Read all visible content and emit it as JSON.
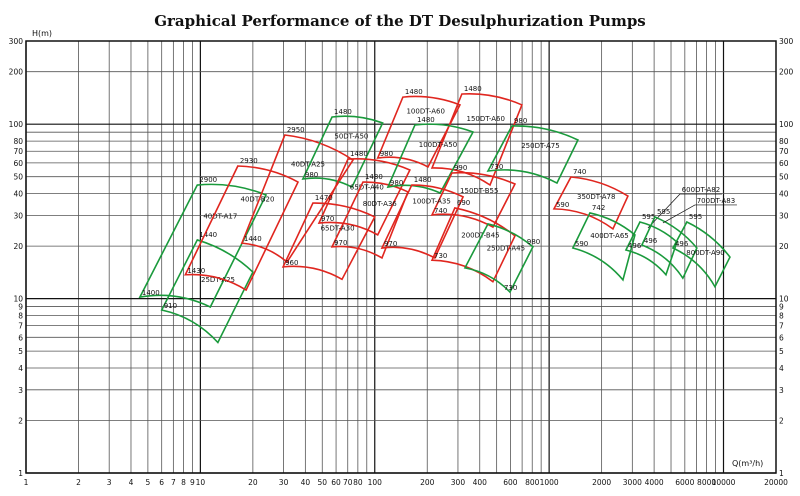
{
  "chart_data": {
    "type": "line",
    "title": "Graphical Performance of the DT Desulphurization Pumps",
    "xlabel": "Q(m³/h)",
    "ylabel": "H(m)",
    "xscale": "log",
    "yscale": "log",
    "xlim": [
      1,
      20000
    ],
    "ylim": [
      1,
      300
    ],
    "grid": true,
    "x_ticks": [
      "1",
      "2",
      "3",
      "4",
      "5",
      "6",
      "7",
      "8",
      "9",
      "10",
      "20",
      "30",
      "40",
      "50",
      "60",
      "70",
      "80",
      "100",
      "200",
      "300",
      "400",
      "600",
      "800",
      "1000",
      "2000",
      "3000",
      "4000",
      "6000",
      "8000",
      "10000",
      "20000"
    ],
    "y_ticks": [
      "1",
      "2",
      "3",
      "4",
      "5",
      "6",
      "7",
      "8",
      "9",
      "10",
      "20",
      "30",
      "40",
      "50",
      "60",
      "70",
      "80",
      "100",
      "200",
      "300"
    ],
    "colors": {
      "red": "#e0261f",
      "green": "#1a9a3c"
    },
    "regions": [
      {
        "name": "40DT-A17",
        "color": "green",
        "corners": [
          [
            9.6,
            44.8
          ],
          [
            23.8,
            39.3
          ],
          [
            11.4,
            8.95
          ],
          [
            4.5,
            10.2
          ]
        ],
        "labels": [
          {
            "text": "2900",
            "at": "tl"
          },
          {
            "text": "1400",
            "at": "bl"
          }
        ]
      },
      {
        "name": "25DT-A25",
        "color": "green",
        "corners": [
          [
            9.6,
            21.7
          ],
          [
            20.0,
            14.2
          ],
          [
            12.6,
            5.6
          ],
          [
            6.0,
            8.6
          ]
        ],
        "labels": [
          {
            "text": "1440",
            "at": "tl"
          },
          {
            "text": "910",
            "at": "bl"
          }
        ]
      },
      {
        "name": "40DT-B20",
        "color": "red",
        "corners": [
          [
            16.4,
            57.6
          ],
          [
            36.3,
            46.6
          ],
          [
            18.3,
            11.2
          ],
          [
            8.2,
            13.7
          ]
        ],
        "labels": [
          {
            "text": "2930",
            "at": "tl"
          },
          {
            "text": "1430",
            "at": "bl"
          }
        ]
      },
      {
        "name": "40DT-A25",
        "color": "red",
        "corners": [
          [
            30.5,
            86.7
          ],
          [
            75,
            62.3
          ],
          [
            31.4,
            16.2
          ],
          [
            17.3,
            20.8
          ]
        ],
        "labels": [
          {
            "text": "2950",
            "at": "tl"
          },
          {
            "text": "1440",
            "at": "bl"
          }
        ]
      },
      {
        "name": "50DT-A50",
        "color": "green",
        "corners": [
          [
            56.9,
            110
          ],
          [
            111,
            101.6
          ],
          [
            74,
            43.6
          ],
          [
            38.7,
            48.5
          ]
        ],
        "labels": [
          {
            "text": "1480",
            "at": "tl"
          },
          {
            "text": "980",
            "at": "bl"
          }
        ]
      },
      {
        "name": "65DT-A40",
        "color": "red",
        "corners": [
          [
            70.2,
            63.1
          ],
          [
            159,
            54.6
          ],
          [
            104,
            23.2
          ],
          [
            47.9,
            27.1
          ]
        ],
        "labels": [
          {
            "text": "1480",
            "at": "tl"
          },
          {
            "text": "970",
            "at": "bl"
          }
        ]
      },
      {
        "name": "80DT-A36",
        "color": "red",
        "corners": [
          [
            85.6,
            46.6
          ],
          [
            155,
            40.9
          ],
          [
            110,
            17.1
          ],
          [
            56.9,
            19.8
          ]
        ],
        "labels": [
          {
            "text": "1480",
            "at": "tl"
          },
          {
            "text": "970",
            "at": "bl"
          }
        ]
      },
      {
        "name": "65DT-A30",
        "color": "red",
        "corners": [
          [
            44.2,
            35.3
          ],
          [
            100,
            29.4
          ],
          [
            64.9,
            12.9
          ],
          [
            29.8,
            15.2
          ]
        ],
        "labels": [
          {
            "text": "1470",
            "at": "tl"
          },
          {
            "text": "960",
            "at": "bl"
          }
        ]
      },
      {
        "name": "100DT-A60",
        "color": "red",
        "corners": [
          [
            145,
            143
          ],
          [
            308,
            129
          ],
          [
            202,
            56.9
          ],
          [
            104,
            64
          ]
        ],
        "labels": [
          {
            "text": "1480",
            "at": "tl"
          },
          {
            "text": "980",
            "at": "bl"
          }
        ]
      },
      {
        "name": "150DT-A60",
        "color": "red",
        "corners": [
          [
            316,
            149
          ],
          [
            698,
            129
          ],
          [
            458,
            44.8
          ],
          [
            213,
            56.1
          ]
        ],
        "labels": [
          {
            "text": "1480",
            "at": "tl"
          }
        ]
      },
      {
        "name": "100DT-A50",
        "color": "green",
        "corners": [
          [
            170,
            99
          ],
          [
            366,
            90.2
          ],
          [
            237,
            40.3
          ],
          [
            119,
            43.6
          ]
        ],
        "labels": [
          {
            "text": "1480",
            "at": "tl"
          },
          {
            "text": "980",
            "at": "bl"
          }
        ]
      },
      {
        "name": "250DT-A75",
        "color": "green",
        "corners": [
          [
            612,
            97.7
          ],
          [
            1463,
            81.2
          ],
          [
            1109,
            46
          ],
          [
            446,
            53.9
          ]
        ],
        "labels": [
          {
            "text": "980",
            "at": "tl"
          },
          {
            "text": "730",
            "at": "bl"
          }
        ]
      },
      {
        "name": "150DT-B55",
        "color": "red",
        "corners": [
          [
            277,
            52.5
          ],
          [
            637,
            45.4
          ],
          [
            476,
            25.7
          ],
          [
            213,
            30.2
          ]
        ],
        "labels": [
          {
            "text": "990",
            "at": "tl"
          },
          {
            "text": "740",
            "at": "bl"
          }
        ]
      },
      {
        "name": "100DT-A35",
        "color": "red",
        "corners": [
          [
            163,
            44.8
          ],
          [
            321,
            38.3
          ],
          [
            221,
            17.1
          ],
          [
            110,
            19.5
          ]
        ],
        "labels": [
          {
            "text": "1480",
            "at": "tl"
          },
          {
            "text": "970",
            "at": "bl"
          }
        ]
      },
      {
        "name": "200DT-B45",
        "color": "red",
        "corners": [
          [
            288,
            33.1
          ],
          [
            637,
            22.9
          ],
          [
            476,
            12.5
          ],
          [
            213,
            16.6
          ]
        ],
        "labels": [
          {
            "text": "690",
            "at": "tl"
          },
          {
            "text": "730",
            "at": "bl"
          }
        ]
      },
      {
        "name": "250DT-A45",
        "color": "green",
        "corners": [
          [
            446,
            26.8
          ],
          [
            807,
            19.8
          ],
          [
            596,
            10.9
          ],
          [
            329,
            15.0
          ]
        ],
        "labels": [
          {
            "text": "980",
            "at": "tr"
          },
          {
            "text": "730",
            "at": "br"
          }
        ]
      },
      {
        "name": "350DT-A78",
        "color": "red",
        "corners": [
          [
            1334,
            49.8
          ],
          [
            2831,
            38.7
          ],
          [
            2322,
            25.1
          ],
          [
            1066,
            32.7
          ]
        ],
        "labels": [
          {
            "text": "740",
            "at": "tl"
          },
          {
            "text": "590",
            "at": "bl"
          }
        ]
      },
      {
        "name": "400DT-A65",
        "color": "green",
        "corners": [
          [
            1714,
            31
          ],
          [
            3105,
            23.2
          ],
          [
            2650,
            12.8
          ],
          [
            1368,
            19.5
          ]
        ],
        "labels": [
          {
            "text": "742",
            "at": "tl"
          },
          {
            "text": "590",
            "at": "bl"
          }
        ]
      },
      {
        "name": "600DT-A82",
        "color": "green",
        "callout": true,
        "corners": [
          [
            3318,
            27.5
          ],
          [
            5405,
            21.1
          ],
          [
            4677,
            13.7
          ],
          [
            2757,
            19.0
          ]
        ],
        "labels": [
          {
            "text": "595",
            "at": "tl"
          },
          {
            "text": "496",
            "at": "bl"
          }
        ]
      },
      {
        "name": "700DT-A83",
        "color": "green",
        "callout": true,
        "corners": [
          [
            4044,
            29.4
          ],
          [
            7035,
            19.5
          ],
          [
            5848,
            13.1
          ],
          [
            3404,
            20.3
          ]
        ],
        "labels": [
          {
            "text": "595",
            "at": "tl"
          },
          {
            "text": "496",
            "at": "bl"
          }
        ]
      },
      {
        "name": "800DT-A90",
        "color": "green",
        "corners": [
          [
            6166,
            27.5
          ],
          [
            10890,
            17.3
          ],
          [
            8933,
            11.7
          ],
          [
            5129,
            19.5
          ]
        ],
        "labels": [
          {
            "text": "595",
            "at": "tl"
          },
          {
            "text": "496",
            "at": "bl"
          }
        ]
      }
    ]
  }
}
